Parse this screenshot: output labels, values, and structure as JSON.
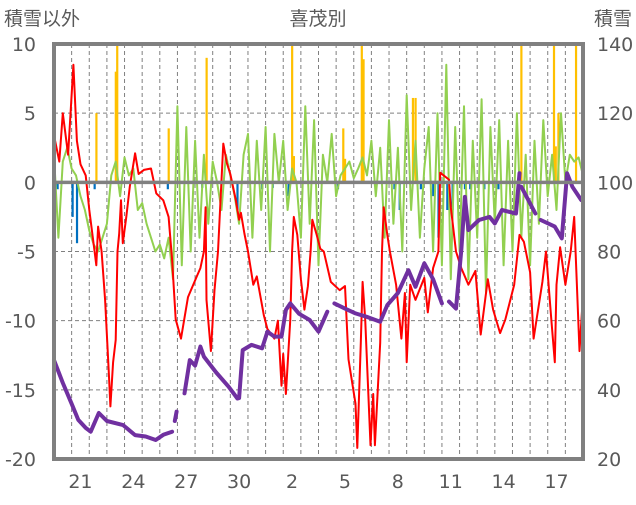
{
  "chart_data": {
    "type": "line",
    "title": "喜茂別",
    "left_axis_label": "積雪以外",
    "right_axis_label": "積雪",
    "left_ylim": [
      -20,
      10
    ],
    "right_ylim": [
      20,
      140
    ],
    "left_ticks": [
      "10",
      "5",
      "0",
      "-5",
      "-10",
      "-15",
      "-20"
    ],
    "right_ticks": [
      "140",
      "120",
      "100",
      "80",
      "60",
      "40",
      "20"
    ],
    "xlim_days": [
      0,
      30
    ],
    "x_tick_labels": [
      {
        "label": "21",
        "t": 1.5
      },
      {
        "label": "24",
        "t": 4.5
      },
      {
        "label": "27",
        "t": 7.5
      },
      {
        "label": "30",
        "t": 10.5
      },
      {
        "label": "2",
        "t": 13.5
      },
      {
        "label": "5",
        "t": 16.5
      },
      {
        "label": "8",
        "t": 19.5
      },
      {
        "label": "11",
        "t": 22.5
      },
      {
        "label": "14",
        "t": 25.5
      },
      {
        "label": "17",
        "t": 28.5
      }
    ],
    "grid": true,
    "series": [
      {
        "name": "temperature",
        "axis": "left",
        "color": "#ff0000",
        "kind": "line",
        "points": [
          [
            0,
            3.4
          ],
          [
            0.3,
            1.5
          ],
          [
            0.5,
            5
          ],
          [
            0.8,
            2
          ],
          [
            1.1,
            8.5
          ],
          [
            1.3,
            3
          ],
          [
            1.5,
            1.3
          ],
          [
            1.8,
            0.5
          ],
          [
            2,
            -2
          ],
          [
            2.3,
            -5
          ],
          [
            2.4,
            -6
          ],
          [
            2.5,
            -3.2
          ],
          [
            2.7,
            -5
          ],
          [
            2.9,
            -8.5
          ],
          [
            3.1,
            -13.6
          ],
          [
            3.2,
            -16.2
          ],
          [
            3.35,
            -13
          ],
          [
            3.5,
            -11.4
          ],
          [
            3.6,
            -5
          ],
          [
            3.7,
            -3.7
          ],
          [
            3.8,
            -1.3
          ],
          [
            3.9,
            -4.4
          ],
          [
            4.1,
            -2.5
          ],
          [
            4.3,
            -0.3
          ],
          [
            4.6,
            2.1
          ],
          [
            4.8,
            0.6
          ],
          [
            5.1,
            0.9
          ],
          [
            5.5,
            1
          ],
          [
            5.8,
            -0.8
          ],
          [
            6.2,
            -1.3
          ],
          [
            6.5,
            -2.5
          ],
          [
            6.7,
            -5.6
          ],
          [
            6.9,
            -9.9
          ],
          [
            7.2,
            -11.3
          ],
          [
            7.6,
            -8.3
          ],
          [
            8.1,
            -6.8
          ],
          [
            8.3,
            -6.2
          ],
          [
            8.5,
            -5
          ],
          [
            8.6,
            -1.8
          ],
          [
            8.65,
            -8.5
          ],
          [
            8.9,
            -12.2
          ],
          [
            9.1,
            -7.8
          ],
          [
            9.3,
            -5
          ],
          [
            9.6,
            2.8
          ],
          [
            9.8,
            1.4
          ],
          [
            10,
            0.6
          ],
          [
            10.3,
            -1.2
          ],
          [
            10.5,
            -2.7
          ],
          [
            10.6,
            -2.2
          ],
          [
            10.8,
            -3.7
          ],
          [
            11,
            -5
          ],
          [
            11.3,
            -7.4
          ],
          [
            11.5,
            -6.8
          ],
          [
            11.9,
            -9.6
          ],
          [
            12.1,
            -10.6
          ],
          [
            12.5,
            -11.3
          ],
          [
            12.7,
            -10
          ],
          [
            12.9,
            -14.7
          ],
          [
            13,
            -12.4
          ],
          [
            13.15,
            -15.3
          ],
          [
            13.4,
            -9.9
          ],
          [
            13.5,
            -5
          ],
          [
            13.6,
            -2.5
          ],
          [
            13.8,
            -3.8
          ],
          [
            14,
            -7
          ],
          [
            14.2,
            -9.2
          ],
          [
            14.4,
            -7.5
          ],
          [
            14.55,
            -5
          ],
          [
            14.65,
            -2.7
          ],
          [
            14.9,
            -3.8
          ],
          [
            15.1,
            -4.8
          ],
          [
            15.3,
            -5
          ],
          [
            15.7,
            -7.2
          ],
          [
            16.2,
            -7.8
          ],
          [
            16.5,
            -7.5
          ],
          [
            16.7,
            -12.8
          ],
          [
            17.1,
            -16
          ],
          [
            17.2,
            -19.2
          ],
          [
            17.4,
            -11.6
          ],
          [
            17.5,
            -7.2
          ],
          [
            17.65,
            -9.9
          ],
          [
            17.95,
            -19
          ],
          [
            18.1,
            -15.3
          ],
          [
            18.2,
            -19
          ],
          [
            18.5,
            -11.6
          ],
          [
            18.6,
            -5
          ],
          [
            18.7,
            -1.8
          ],
          [
            18.9,
            -3.8
          ],
          [
            19.05,
            -5
          ],
          [
            19.4,
            -7.4
          ],
          [
            19.7,
            -11.3
          ],
          [
            19.9,
            -8
          ],
          [
            20,
            -13
          ],
          [
            20.2,
            -7.4
          ],
          [
            20.5,
            -8.5
          ],
          [
            21,
            -6.9
          ],
          [
            21.2,
            -9.4
          ],
          [
            21.5,
            -6.2
          ],
          [
            21.8,
            -5
          ],
          [
            21.9,
            0.7
          ],
          [
            22.4,
            0.2
          ],
          [
            22.5,
            -1.8
          ],
          [
            22.8,
            -5
          ],
          [
            23.1,
            -6.2
          ],
          [
            23.5,
            -7.4
          ],
          [
            23.9,
            -6.4
          ],
          [
            24.2,
            -11
          ],
          [
            24.6,
            -7
          ],
          [
            24.9,
            -9.2
          ],
          [
            25.3,
            -10.9
          ],
          [
            25.6,
            -9.9
          ],
          [
            26.1,
            -7.4
          ],
          [
            26.4,
            -3.8
          ],
          [
            26.65,
            -4.3
          ],
          [
            27,
            -6.5
          ],
          [
            27.2,
            -11.3
          ],
          [
            27.7,
            -7.2
          ],
          [
            27.9,
            -5
          ],
          [
            28.2,
            -9.9
          ],
          [
            28.4,
            -13
          ],
          [
            28.5,
            -7.4
          ],
          [
            28.7,
            -4.7
          ],
          [
            29,
            -7.4
          ],
          [
            29.3,
            -5
          ],
          [
            29.5,
            -2.5
          ],
          [
            29.8,
            -12.2
          ],
          [
            29.95,
            -9.2
          ]
        ]
      },
      {
        "name": "green-series",
        "axis": "left",
        "color": "#92d050",
        "kind": "line",
        "values": [
          2,
          -4,
          1.5,
          2.5,
          1,
          0.5,
          -1,
          -2,
          -3.5,
          -4.5,
          -5,
          -4,
          -3,
          0.5,
          1.5,
          -1,
          1.8,
          0.5,
          1,
          -2,
          -1.5,
          -3,
          -4,
          -5,
          -4.5,
          -5.5,
          -4,
          -7,
          5.5,
          -6,
          4,
          -5,
          3,
          -4,
          2,
          -3,
          1.5,
          0,
          -2,
          2,
          0.5,
          -1,
          -3,
          2,
          3.5,
          -4,
          3,
          -2,
          4,
          -5,
          3.5,
          0,
          3,
          -2,
          1,
          0,
          -4,
          5.5,
          -3,
          4.5,
          -6,
          2,
          0,
          3.5,
          -1,
          0.5,
          1,
          1.5,
          0.3,
          1,
          1.8,
          0.5,
          3,
          -1,
          2.5,
          -4,
          4.5,
          -3,
          2.5,
          -5,
          6.3,
          -2,
          3,
          -4,
          1,
          4,
          -5,
          5,
          -6,
          8.5,
          -7,
          4,
          -5,
          5.5,
          -7,
          3,
          -4,
          6,
          -8,
          4,
          -3,
          4.5,
          -6,
          3,
          -5,
          5,
          -4,
          2,
          -6,
          3,
          -3,
          4.5,
          -1,
          2,
          -2,
          5,
          0,
          2,
          1.5,
          1.8,
          0.5
        ]
      },
      {
        "name": "snow-depth",
        "axis": "right",
        "color": "#7030a0",
        "kind": "line",
        "segments": [
          [
            [
              0,
              48.6
            ],
            [
              0.5,
              42
            ],
            [
              1,
              36
            ],
            [
              1.38,
              31.3
            ],
            [
              1.8,
              29
            ],
            [
              2.08,
              27.9
            ],
            [
              2.54,
              33.3
            ],
            [
              3,
              31
            ],
            [
              3.92,
              29.8
            ],
            [
              4.6,
              26.9
            ],
            [
              5.2,
              26.5
            ],
            [
              5.77,
              25.5
            ],
            [
              6.2,
              27
            ],
            [
              6.7,
              27.9
            ]
          ],
          [
            [
              6.85,
              31
            ],
            [
              6.95,
              33.7
            ]
          ],
          [
            [
              7.4,
              39
            ],
            [
              7.7,
              48.6
            ],
            [
              8.0,
              47
            ],
            [
              8.3,
              52.5
            ],
            [
              8.5,
              49.6
            ],
            [
              9.2,
              45
            ],
            [
              9.9,
              40.9
            ],
            [
              10.4,
              37.5
            ],
            [
              10.5,
              37.6
            ],
            [
              10.7,
              51.5
            ],
            [
              11.2,
              53
            ],
            [
              11.8,
              52
            ],
            [
              12.1,
              56.8
            ],
            [
              12.5,
              55.4
            ],
            [
              12.9,
              55.4
            ],
            [
              13.15,
              63.1
            ],
            [
              13.4,
              65
            ],
            [
              13.9,
              62
            ],
            [
              14.5,
              60.2
            ],
            [
              15,
              56.8
            ],
            [
              15.5,
              62.6
            ]
          ],
          [
            [
              15.9,
              65
            ],
            [
              16.5,
              63.5
            ],
            [
              17.1,
              62.1
            ],
            [
              17.8,
              61
            ],
            [
              18.5,
              59.7
            ],
            [
              18.9,
              64.5
            ],
            [
              19.5,
              68
            ],
            [
              20.1,
              74.6
            ],
            [
              20.5,
              69.8
            ],
            [
              21,
              76.6
            ],
            [
              21.5,
              72
            ],
            [
              22,
              65
            ]
          ],
          [
            [
              22.4,
              65.5
            ],
            [
              22.8,
              63.5
            ],
            [
              23.1,
              80.4
            ],
            [
              23.3,
              95.8
            ],
            [
              23.5,
              86.2
            ],
            [
              24.1,
              89.1
            ],
            [
              24.7,
              90
            ],
            [
              25,
              88.1
            ],
            [
              25.4,
              92
            ],
            [
              26.2,
              91
            ],
            [
              26.4,
              102.6
            ]
          ],
          [
            [
              26.5,
              98.7
            ],
            [
              27.3,
              91
            ]
          ],
          [
            [
              27.6,
              89.1
            ],
            [
              28.4,
              87.2
            ],
            [
              28.8,
              83.8
            ],
            [
              29.1,
              102.6
            ],
            [
              29.4,
              98.7
            ],
            [
              29.9,
              94.9
            ]
          ]
        ]
      },
      {
        "name": "positive-bars",
        "axis": "left",
        "color": "#ffc000",
        "kind": "bar",
        "points": [
          [
            2.4,
            5
          ],
          [
            3.5,
            8
          ],
          [
            3.58,
            10
          ],
          [
            6.5,
            3.9
          ],
          [
            8.65,
            9
          ],
          [
            13.5,
            10
          ],
          [
            13.6,
            1.9
          ],
          [
            16.4,
            3.9
          ],
          [
            16.5,
            1.7
          ],
          [
            17.45,
            10
          ],
          [
            17.55,
            8.9
          ],
          [
            20.35,
            6.1
          ],
          [
            20.5,
            6.1
          ],
          [
            26.5,
            10
          ],
          [
            28.35,
            10
          ],
          [
            28.45,
            2.6
          ],
          [
            28.6,
            5
          ],
          [
            29.6,
            10
          ]
        ]
      },
      {
        "name": "negative-bars",
        "axis": "left",
        "color": "#0070c0",
        "kind": "bar",
        "points": [
          [
            0.2,
            -0.5
          ],
          [
            1.05,
            -2.5
          ],
          [
            1.3,
            -4.4
          ],
          [
            2.3,
            -0.5
          ],
          [
            6.45,
            -0.5
          ],
          [
            8.4,
            -0.4
          ],
          [
            10.4,
            -2
          ],
          [
            11.8,
            -0.5
          ],
          [
            12.4,
            -0.4
          ],
          [
            13.3,
            -1
          ],
          [
            16.1,
            -0.5
          ],
          [
            19.3,
            -0.5
          ],
          [
            19.6,
            -2
          ],
          [
            20.8,
            -0.5
          ],
          [
            21.5,
            -1
          ],
          [
            21.8,
            -4
          ],
          [
            22.3,
            -2
          ],
          [
            22.6,
            -2
          ],
          [
            23.1,
            -0.5
          ],
          [
            23.3,
            -0.5
          ],
          [
            23.6,
            -0.5
          ],
          [
            24.4,
            -0.5
          ],
          [
            25.2,
            -0.5
          ]
        ]
      }
    ]
  }
}
